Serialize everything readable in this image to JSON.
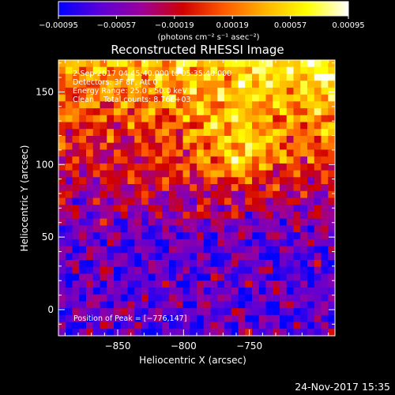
{
  "colorbar": {
    "ticks": [
      "-0.00095",
      "-0.00057",
      "-0.00019",
      "0.00019",
      "0.00057",
      "0.00095"
    ],
    "units": "(photons cm⁻² s⁻¹ asec⁻²)",
    "range": [
      -0.00095,
      0.00095
    ],
    "colormap": [
      "#0000ff",
      "#5b00d8",
      "#9b009b",
      "#d00000",
      "#ff5a00",
      "#ffb400",
      "#ffff00",
      "#ffffff"
    ]
  },
  "chart_data": {
    "type": "heatmap",
    "title": "Reconstructed RHESSI Image",
    "xlabel": "Heliocentric X (arcsec)",
    "ylabel": "Heliocentric Y (arcsec)",
    "xlim": [
      -895,
      -685
    ],
    "ylim": [
      -18,
      172
    ],
    "x_ticks": [
      -850,
      -800,
      -750
    ],
    "y_ticks": [
      0,
      50,
      100,
      150
    ],
    "x_tick_labels": [
      "−850",
      "−800",
      "−750"
    ],
    "y_tick_labels": [
      "0",
      "50",
      "100",
      "150"
    ],
    "peak": [
      -776,
      147
    ]
  },
  "annotations": {
    "time_range": "2-Sep-2017 04:45:40.000 to 05:35:40.000",
    "detectors": "Detectors: 3F 8F, Att 0",
    "energy": "Energy Range: 25.0 - 50.0 keV",
    "clean": "Clean    Total counts: 8.76E+03",
    "peak_label": "Position of Peak = [−776,147]"
  },
  "footer": {
    "date": "24-Nov-2017 15:35"
  }
}
